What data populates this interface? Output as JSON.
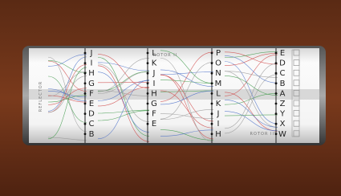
{
  "labels": {
    "reflector": "REFLECTOR",
    "rotor_mid": "ROTOR II",
    "rotor_right": "ROTOR III"
  },
  "columns": [
    [
      "J",
      "I",
      "H",
      "G",
      "F",
      "E",
      "D",
      "C",
      "B"
    ],
    [
      "L",
      "K",
      "J",
      "I",
      "H",
      "G",
      "F",
      "E"
    ],
    [
      "P",
      "O",
      "N",
      "M",
      "L",
      "K",
      "J",
      "I",
      "H"
    ],
    [
      "E",
      "D",
      "C",
      "B",
      "A",
      "Z",
      "Y",
      "X",
      "W"
    ]
  ]
}
